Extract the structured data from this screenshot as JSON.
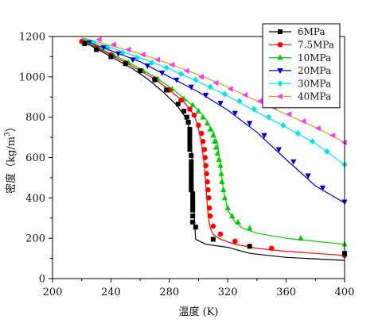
{
  "chart_data": {
    "type": "line",
    "title": "",
    "xlabel": "温度 (K)",
    "ylabel": "密度（kg/m³）",
    "ylabel_main": "密度（kg/m",
    "ylabel_sup": "3",
    "ylabel_close": "）",
    "xlim": [
      200,
      400
    ],
    "ylim": [
      0,
      1200
    ],
    "xticks": [
      200,
      240,
      280,
      320,
      360,
      400
    ],
    "yticks": [
      0,
      200,
      400,
      600,
      800,
      1000,
      1200
    ],
    "grid": false,
    "legend_position": "top-right",
    "series": [
      {
        "name": "6MPa",
        "color": "#000000",
        "marker": "square",
        "x": [
          220,
          225,
          230,
          235,
          240,
          245,
          250,
          255,
          260,
          265,
          270,
          275,
          280,
          285,
          290,
          292,
          294,
          295,
          295.5,
          296,
          296.5,
          297,
          298,
          305,
          320,
          335,
          360,
          400
        ],
        "y": [
          1175,
          1160,
          1140,
          1120,
          1100,
          1080,
          1060,
          1040,
          1015,
          990,
          960,
          930,
          895,
          860,
          810,
          780,
          740,
          680,
          600,
          500,
          400,
          320,
          195,
          170,
          155,
          125,
          105,
          90
        ],
        "marker_x": [
          222,
          230,
          240,
          250,
          260,
          270,
          278,
          286,
          290,
          292,
          293,
          294,
          294,
          294,
          294,
          294,
          294,
          295,
          295,
          295,
          295,
          295,
          295,
          295,
          295,
          295,
          296,
          296,
          296,
          296,
          296,
          296,
          296,
          298,
          310,
          335,
          400
        ],
        "marker_y": [
          1165,
          1135,
          1100,
          1065,
          1030,
          985,
          935,
          865,
          830,
          800,
          775,
          740,
          720,
          700,
          680,
          660,
          640,
          610,
          580,
          560,
          540,
          520,
          500,
          480,
          460,
          440,
          420,
          400,
          380,
          360,
          340,
          310,
          280,
          255,
          195,
          160,
          125
        ]
      },
      {
        "name": "7.5MPa",
        "color": "#ff0000",
        "marker": "circle",
        "x": [
          220,
          230,
          240,
          250,
          260,
          270,
          280,
          290,
          295,
          298,
          300,
          302,
          304,
          305,
          306,
          307,
          308,
          310,
          315,
          325,
          340,
          360,
          400
        ],
        "y": [
          1175,
          1145,
          1110,
          1070,
          1030,
          990,
          935,
          875,
          830,
          790,
          740,
          670,
          560,
          460,
          360,
          290,
          250,
          220,
          195,
          170,
          150,
          135,
          115
        ],
        "marker_x": [
          220,
          230,
          240,
          250,
          260,
          270,
          280,
          288,
          294,
          297,
          300,
          302,
          303,
          304,
          304.5,
          305,
          305.5,
          306,
          306.5,
          307,
          307.5,
          308,
          310,
          315,
          325,
          350,
          400
        ],
        "marker_y": [
          1175,
          1145,
          1110,
          1070,
          1030,
          990,
          935,
          885,
          840,
          810,
          760,
          720,
          680,
          640,
          600,
          560,
          520,
          480,
          440,
          400,
          350,
          310,
          260,
          220,
          185,
          150,
          115
        ]
      },
      {
        "name": "10MPa",
        "color": "#00cc00",
        "marker": "triangle-up",
        "x": [
          220,
          230,
          240,
          250,
          260,
          270,
          280,
          290,
          300,
          305,
          310,
          313,
          315,
          317,
          320,
          325,
          330,
          340,
          360,
          380,
          400
        ],
        "y": [
          1180,
          1150,
          1115,
          1080,
          1040,
          1000,
          950,
          895,
          835,
          790,
          730,
          670,
          560,
          440,
          340,
          280,
          250,
          225,
          200,
          185,
          170
        ],
        "marker_x": [
          223,
          232,
          242,
          252,
          262,
          272,
          282,
          290,
          296,
          300,
          303,
          306,
          308,
          310,
          311,
          312,
          313,
          314,
          315,
          315.5,
          316,
          317,
          318,
          320,
          323,
          327,
          335,
          370,
          400
        ],
        "marker_y": [
          1170,
          1140,
          1105,
          1070,
          1030,
          990,
          940,
          890,
          860,
          830,
          800,
          770,
          740,
          710,
          680,
          650,
          620,
          590,
          560,
          520,
          480,
          440,
          400,
          350,
          310,
          280,
          250,
          200,
          170
        ]
      },
      {
        "name": "20MPa",
        "color": "#0000cc",
        "marker": "triangle-down",
        "x": [
          220,
          240,
          260,
          280,
          300,
          320,
          340,
          360,
          380,
          400
        ],
        "y": [
          1185,
          1130,
          1075,
          1000,
          925,
          835,
          725,
          590,
          460,
          375
        ],
        "marker_x": [
          225,
          235,
          245,
          255,
          265,
          275,
          285,
          295,
          305,
          315,
          325,
          335,
          345,
          355,
          365,
          375,
          385,
          400
        ],
        "marker_y": [
          1170,
          1145,
          1115,
          1085,
          1055,
          1020,
          985,
          950,
          910,
          870,
          820,
          770,
          710,
          640,
          580,
          510,
          450,
          380
        ]
      },
      {
        "name": "30MPa",
        "color": "#00e5e5",
        "marker": "diamond",
        "x": [
          220,
          240,
          260,
          280,
          300,
          320,
          340,
          360,
          380,
          400
        ],
        "y": [
          1190,
          1145,
          1095,
          1040,
          975,
          905,
          825,
          750,
          670,
          565
        ],
        "marker_x": [
          228,
          238,
          248,
          258,
          268,
          278,
          288,
          298,
          308,
          318,
          328,
          338,
          348,
          358,
          368,
          378,
          388,
          400
        ],
        "marker_y": [
          1170,
          1145,
          1120,
          1095,
          1070,
          1045,
          1015,
          985,
          950,
          915,
          880,
          840,
          800,
          760,
          720,
          680,
          630,
          565
        ]
      },
      {
        "name": "40MPa",
        "color": "#ff33ff",
        "line_color": "#d8a010",
        "marker": "triangle-left",
        "x": [
          220,
          240,
          260,
          280,
          300,
          320,
          340,
          360,
          380,
          400
        ],
        "y": [
          1195,
          1155,
          1115,
          1065,
          1010,
          950,
          880,
          815,
          750,
          675
        ],
        "marker_x": [
          232,
          242,
          252,
          262,
          272,
          282,
          292,
          302,
          312,
          322,
          332,
          342,
          352,
          362,
          372,
          382,
          392,
          400
        ],
        "marker_y": [
          1185,
          1160,
          1135,
          1110,
          1085,
          1060,
          1030,
          1000,
          970,
          940,
          910,
          880,
          850,
          815,
          780,
          745,
          710,
          675
        ]
      }
    ]
  }
}
